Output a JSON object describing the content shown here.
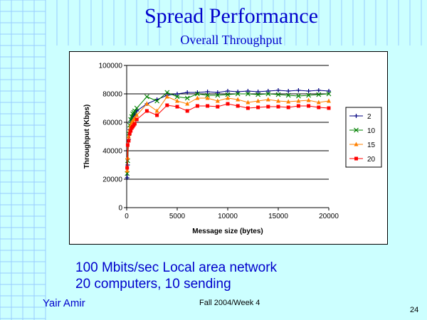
{
  "slide": {
    "title": "Spread Performance",
    "subtitle": "Overall Throughput",
    "body_lines": [
      "100 Mbits/sec  Local area network",
      "20 computers, 10 sending"
    ],
    "author": "Yair Amir",
    "footer": "Fall 2004/Week 4",
    "page_number": "24",
    "colors": {
      "background": "#ccffff",
      "text": "#0000cc",
      "grid_lines": "#99ccff"
    }
  },
  "chart_data": {
    "type": "line",
    "title": "",
    "xlabel": "Message size (bytes)",
    "ylabel": "Throughput (Kbps)",
    "xlim": [
      0,
      20000
    ],
    "ylim": [
      0,
      100000
    ],
    "xticks": [
      0,
      5000,
      10000,
      15000,
      20000
    ],
    "yticks": [
      0,
      20000,
      40000,
      60000,
      80000,
      100000
    ],
    "xtick_labels": [
      "0",
      "5000",
      "10000",
      "15000",
      "20000"
    ],
    "ytick_labels": [
      "0",
      "20000",
      "40000",
      "60000",
      "80000",
      "100000"
    ],
    "grid": "horizontal",
    "legend_position": "right",
    "x": [
      50,
      100,
      200,
      300,
      400,
      500,
      600,
      700,
      800,
      1000,
      2000,
      3000,
      4000,
      5000,
      6000,
      7000,
      8000,
      9000,
      10000,
      11000,
      12000,
      13000,
      14000,
      15000,
      16000,
      17000,
      18000,
      19000,
      20000
    ],
    "series": [
      {
        "name": "2",
        "color": "#000080",
        "marker": "plus",
        "values": [
          21000,
          30000,
          48000,
          55000,
          60000,
          62000,
          64000,
          65000,
          66000,
          68000,
          73000,
          76000,
          79000,
          80000,
          81000,
          81000,
          81500,
          81000,
          82000,
          81500,
          82000,
          81500,
          82000,
          82500,
          82000,
          82500,
          82000,
          82500,
          82000
        ]
      },
      {
        "name": "10",
        "color": "#008000",
        "marker": "x",
        "values": [
          24000,
          33000,
          52000,
          58000,
          62000,
          64000,
          66000,
          67000,
          68000,
          70000,
          78000,
          75000,
          81000,
          78000,
          77000,
          80000,
          79000,
          79000,
          79500,
          80000,
          80000,
          79500,
          80000,
          79500,
          79000,
          78500,
          79000,
          79500,
          80000
        ]
      },
      {
        "name": "15",
        "color": "#ff8000",
        "marker": "triangle",
        "values": [
          26000,
          35000,
          50000,
          55000,
          58000,
          60000,
          61000,
          62000,
          63000,
          65000,
          73000,
          68000,
          78000,
          75000,
          73000,
          77000,
          77000,
          75000,
          77000,
          76000,
          74000,
          75000,
          76000,
          75000,
          74500,
          75000,
          75500,
          74000,
          75000
        ]
      },
      {
        "name": "20",
        "color": "#ff0000",
        "marker": "square",
        "values": [
          28000,
          44000,
          47000,
          52000,
          54000,
          56000,
          57000,
          58000,
          59000,
          62000,
          68000,
          65000,
          72000,
          71000,
          68000,
          71500,
          71500,
          71000,
          73000,
          71500,
          70000,
          70500,
          71000,
          71000,
          70500,
          71500,
          71500,
          70500,
          70000
        ]
      }
    ]
  }
}
